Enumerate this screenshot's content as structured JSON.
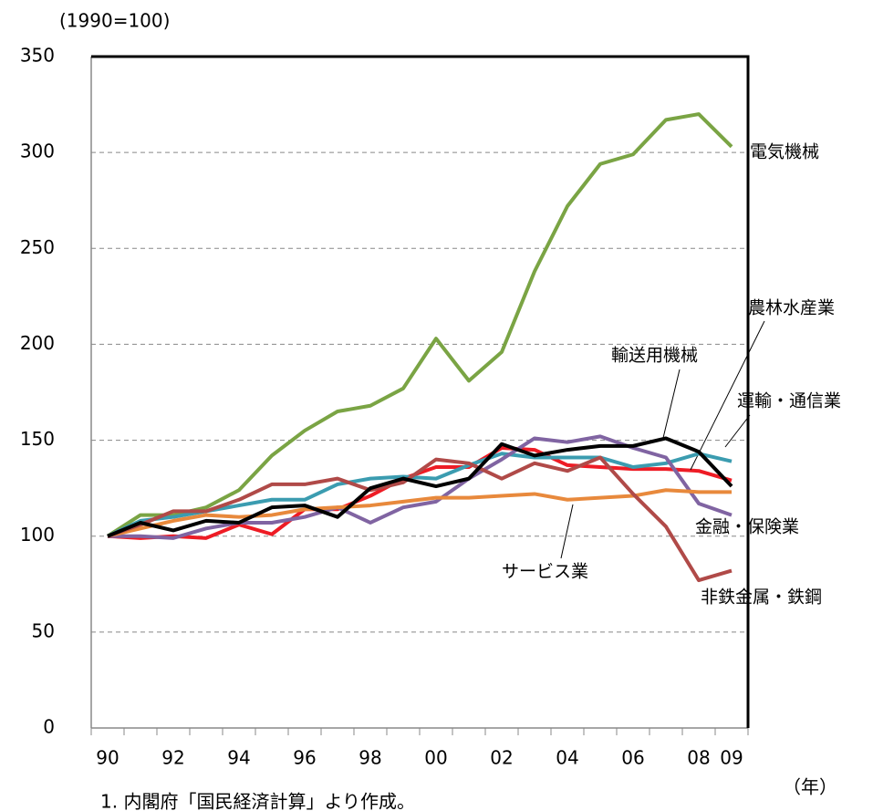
{
  "chart_data": {
    "type": "line",
    "y_label": "(1990=100)",
    "x_label": "（年）",
    "note": "1. 内閣府「国民経済計算」より作成。",
    "categories": [
      "90",
      null,
      "92",
      null,
      "94",
      null,
      "96",
      null,
      "98",
      null,
      "00",
      null,
      "02",
      null,
      "04",
      null,
      "06",
      null,
      "08",
      "09"
    ],
    "series": [
      {
        "name": "電気機械",
        "color": "#7aa444",
        "values": [
          100,
          111,
          111,
          115,
          124,
          142,
          155,
          165,
          168,
          177,
          203,
          181,
          196,
          238,
          272,
          294,
          299,
          317,
          320,
          303
        ]
      },
      {
        "name": "農林水産業",
        "color": "#ee1c25",
        "values": [
          100,
          99,
          100,
          99,
          106,
          101,
          114,
          114,
          121,
          130,
          136,
          136,
          146,
          145,
          137,
          136,
          135,
          135,
          134,
          129
        ]
      },
      {
        "name": "運輸・通信業",
        "color": "#3b9cb0",
        "values": [
          100,
          108,
          110,
          113,
          116,
          119,
          119,
          127,
          130,
          131,
          130,
          137,
          143,
          141,
          141,
          141,
          136,
          138,
          143,
          139
        ]
      },
      {
        "name": "金融・保険業",
        "color": "#8064a2",
        "values": [
          100,
          100,
          99,
          104,
          107,
          107,
          110,
          115,
          107,
          115,
          118,
          130,
          140,
          151,
          149,
          152,
          146,
          141,
          117,
          111
        ]
      },
      {
        "name": "サービス業",
        "color": "#e8893c",
        "values": [
          100,
          104,
          108,
          111,
          110,
          111,
          114,
          115,
          116,
          118,
          120,
          120,
          121,
          122,
          119,
          120,
          121,
          124,
          123,
          123
        ]
      },
      {
        "name": "非鉄金属・鉄鋼",
        "color": "#b04a48",
        "values": [
          100,
          106,
          113,
          113,
          119,
          127,
          127,
          130,
          124,
          128,
          140,
          138,
          130,
          138,
          134,
          141,
          122,
          105,
          77,
          82
        ]
      },
      {
        "name": "輸送用機械",
        "color": "#000000",
        "values": [
          100,
          107,
          103,
          108,
          107,
          115,
          116,
          110,
          125,
          130,
          126,
          130,
          148,
          142,
          145,
          147,
          147,
          151,
          144,
          126
        ]
      }
    ],
    "ylim": [
      0,
      350
    ],
    "yticks": [
      0,
      50,
      100,
      150,
      200,
      250,
      300,
      350
    ],
    "grid": true
  }
}
